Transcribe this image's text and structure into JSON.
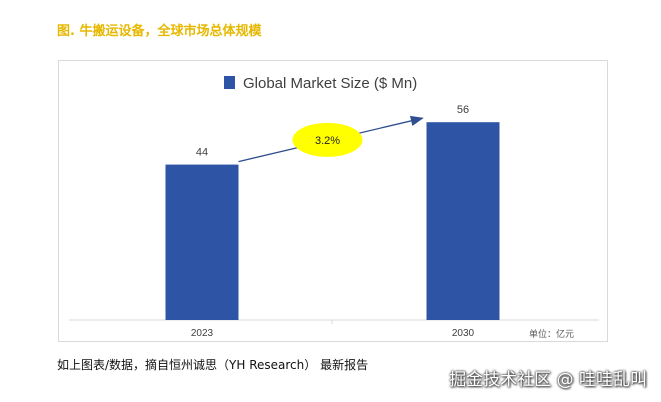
{
  "figure_title": "图. 牛搬运设备，全球市场总体规模",
  "caption": "如上图表/数据，摘自恒州诚思（YH Research） 最新报告",
  "watermark": "掘金技术社区 @ 哇哇乱叫",
  "chart_data": {
    "type": "bar",
    "title": "",
    "legend": [
      {
        "name": "Global Market Size ($ Mn)",
        "color": "#2e55a5"
      }
    ],
    "legend_position": "top-center",
    "categories": [
      "2023",
      "2030"
    ],
    "series": [
      {
        "name": "Global Market Size ($ Mn)",
        "values": [
          44,
          56
        ]
      }
    ],
    "data_labels": [
      "44",
      "56"
    ],
    "annotation": {
      "label": "3.2%",
      "type": "CAGR arrow",
      "from": "2023",
      "to": "2030",
      "bubble_color": "#ffff00"
    },
    "unit_note": "单位：亿元",
    "xlabel": "",
    "ylabel": "",
    "ylim": [
      0,
      62
    ],
    "grid": false,
    "colors": {
      "bar": "#2e55a5",
      "arrow": "#2f4f8f"
    }
  }
}
